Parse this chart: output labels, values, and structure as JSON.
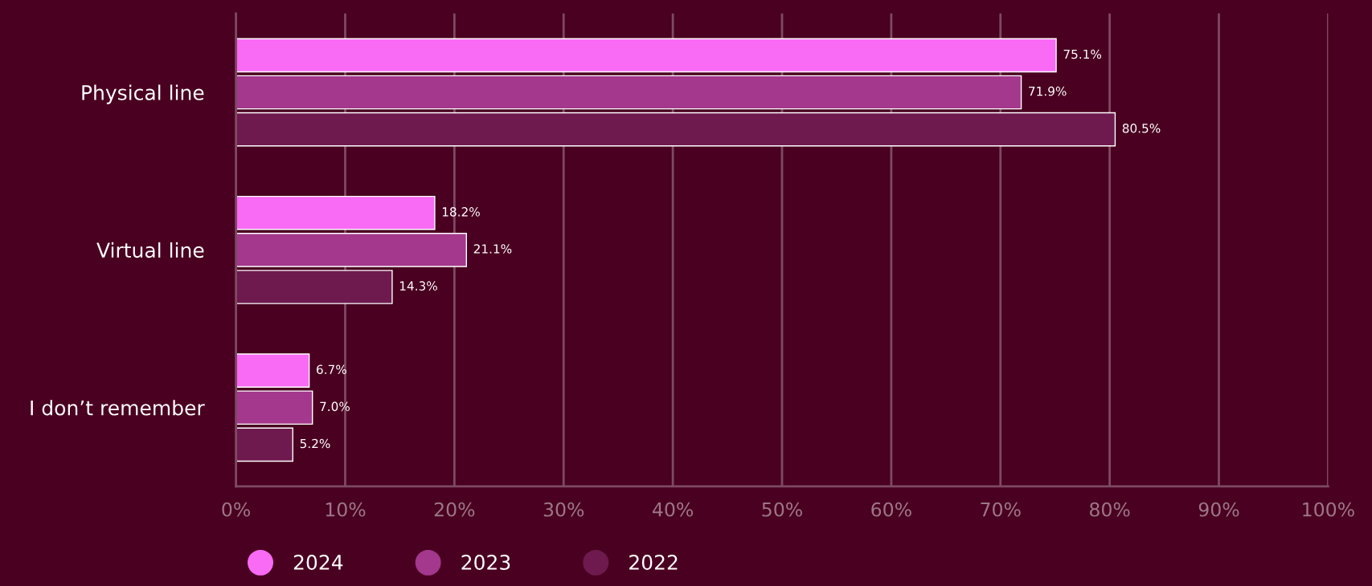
{
  "chart_data": {
    "type": "bar",
    "orientation": "horizontal",
    "categories": [
      "Physical line",
      "Virtual line",
      "I don’t remember"
    ],
    "series": [
      {
        "name": "2024",
        "color": "#f96af5",
        "values": [
          75.1,
          18.2,
          6.7
        ],
        "value_labels": [
          "75.1%",
          "18.2%",
          "6.7%"
        ]
      },
      {
        "name": "2023",
        "color": "#a3388c",
        "values": [
          71.9,
          21.1,
          7.0
        ],
        "value_labels": [
          "71.9%",
          "21.1%",
          "7.0%"
        ]
      },
      {
        "name": "2022",
        "color": "#6e1a4e",
        "values": [
          80.5,
          14.3,
          5.2
        ],
        "value_labels": [
          "80.5%",
          "14.3%",
          "5.2%"
        ]
      }
    ],
    "xlim": [
      0,
      100
    ],
    "xticks": [
      {
        "value": 0,
        "label": "0%"
      },
      {
        "value": 10,
        "label": "10%"
      },
      {
        "value": 20,
        "label": "20%"
      },
      {
        "value": 30,
        "label": "30%"
      },
      {
        "value": 40,
        "label": "40%"
      },
      {
        "value": 50,
        "label": "50%"
      },
      {
        "value": 60,
        "label": "60%"
      },
      {
        "value": 70,
        "label": "70%"
      },
      {
        "value": 80,
        "label": "80%"
      },
      {
        "value": 90,
        "label": "90%"
      },
      {
        "value": 100,
        "label": "100%"
      }
    ],
    "grid": "x",
    "legend": "bottom left"
  }
}
